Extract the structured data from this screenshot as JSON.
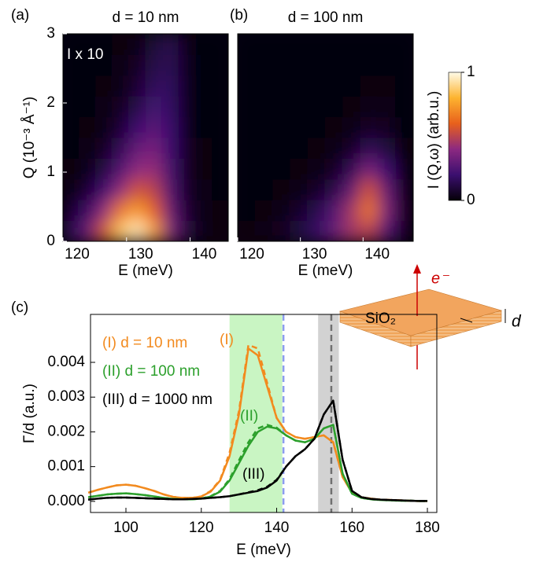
{
  "chart_data": [
    {
      "type": "heatmap",
      "panel": "(a)",
      "title": "d = 10 nm",
      "annotation": "I x 10",
      "x_label": "E (meV)",
      "y_label": "Q (10⁻³ Å⁻¹)",
      "xlim": [
        120,
        146
      ],
      "xticks": [
        120,
        130,
        140
      ],
      "ylim": [
        0,
        3
      ],
      "yticks": [
        0,
        1,
        2,
        3
      ],
      "x": [
        121.3,
        123.9,
        126.5,
        129.1,
        131.7,
        134.3,
        136.9,
        139.5,
        142.1,
        144.7
      ],
      "y": [
        0.15,
        0.45,
        0.75,
        1.05,
        1.35,
        1.65,
        1.95,
        2.25,
        2.55,
        2.85
      ],
      "z": [
        [
          0.15,
          0.3,
          0.55,
          0.85,
          0.95,
          0.75,
          0.35,
          0.1,
          0.03,
          0.01
        ],
        [
          0.08,
          0.18,
          0.4,
          0.65,
          0.75,
          0.6,
          0.3,
          0.08,
          0.02,
          0.01
        ],
        [
          0.03,
          0.08,
          0.2,
          0.4,
          0.55,
          0.5,
          0.25,
          0.06,
          0.02,
          0
        ],
        [
          0.01,
          0.04,
          0.1,
          0.25,
          0.4,
          0.42,
          0.22,
          0.05,
          0.01,
          0
        ],
        [
          0,
          0.02,
          0.05,
          0.15,
          0.3,
          0.35,
          0.2,
          0.05,
          0.01,
          0
        ],
        [
          0,
          0.01,
          0.03,
          0.08,
          0.2,
          0.28,
          0.2,
          0.04,
          0,
          0
        ],
        [
          0,
          0,
          0.02,
          0.05,
          0.12,
          0.22,
          0.18,
          0.04,
          0,
          0
        ],
        [
          0,
          0,
          0.01,
          0.03,
          0.08,
          0.16,
          0.17,
          0.04,
          0,
          0
        ],
        [
          0,
          0,
          0,
          0.02,
          0.05,
          0.12,
          0.15,
          0.04,
          0,
          0
        ],
        [
          0,
          0,
          0,
          0.01,
          0.03,
          0.09,
          0.14,
          0.03,
          0,
          0
        ]
      ]
    },
    {
      "type": "heatmap",
      "panel": "(b)",
      "title": "d = 100 nm",
      "x_label": "E (meV)",
      "xlim": [
        120,
        148
      ],
      "xticks": [
        120,
        130,
        140
      ],
      "ylim": [
        0,
        3
      ],
      "x": [
        121.4,
        124.2,
        127,
        129.8,
        132.6,
        135.4,
        138.2,
        141,
        143.8,
        146.6
      ],
      "y": [
        0.15,
        0.45,
        0.75,
        1.05,
        1.35,
        1.65,
        1.95,
        2.25,
        2.55,
        2.85
      ],
      "z": [
        [
          0.01,
          0.02,
          0.05,
          0.1,
          0.18,
          0.3,
          0.45,
          0.5,
          0.25,
          0.05
        ],
        [
          0,
          0.01,
          0.03,
          0.07,
          0.13,
          0.25,
          0.45,
          0.65,
          0.35,
          0.05
        ],
        [
          0,
          0,
          0.01,
          0.03,
          0.06,
          0.12,
          0.3,
          0.55,
          0.3,
          0.04
        ],
        [
          0,
          0,
          0,
          0.01,
          0.02,
          0.05,
          0.15,
          0.35,
          0.2,
          0.02
        ],
        [
          0,
          0,
          0,
          0,
          0.01,
          0.02,
          0.06,
          0.15,
          0.1,
          0.01
        ],
        [
          0,
          0,
          0,
          0,
          0,
          0.01,
          0.02,
          0.06,
          0.05,
          0
        ],
        [
          0,
          0,
          0,
          0,
          0,
          0,
          0.01,
          0.03,
          0.02,
          0
        ],
        [
          0,
          0,
          0,
          0,
          0,
          0,
          0,
          0.01,
          0.01,
          0
        ],
        [
          0,
          0,
          0,
          0,
          0,
          0,
          0,
          0,
          0,
          0
        ],
        [
          0,
          0,
          0,
          0,
          0,
          0,
          0,
          0,
          0,
          0
        ]
      ]
    },
    {
      "type": "line",
      "panel": "(c)",
      "x_label": "E (meV)",
      "y_label": "Γ/d (a.u.)",
      "xlim": [
        90.6,
        182.5
      ],
      "xticks": [
        100,
        120,
        140,
        160,
        180
      ],
      "ylim": [
        -0.00032,
        0.00538
      ],
      "yticks": [
        {
          "value": 0,
          "label": "0.000"
        },
        {
          "value": 0.001,
          "label": "0.001"
        },
        {
          "value": 0.002,
          "label": "0.002"
        },
        {
          "value": 0.003,
          "label": "0.003"
        },
        {
          "value": 0.004,
          "label": "0.004"
        }
      ],
      "bands": [
        {
          "range": [
            127.5,
            141.5
          ],
          "color": "#c9f5c3"
        },
        {
          "range": [
            151,
            156.5
          ],
          "color": "#d2d2d2"
        }
      ],
      "vlines": [
        {
          "x": 141.8,
          "color": "#8c9cf0"
        },
        {
          "x": 154.5,
          "color": "#707070"
        }
      ],
      "annotations": [
        "(I)",
        "(II)",
        "(III)"
      ],
      "x": [
        90,
        92.5,
        95,
        97.5,
        100,
        102.5,
        105,
        107.5,
        110,
        112.5,
        115,
        117.5,
        120,
        122.5,
        125,
        127.5,
        130,
        132.5,
        135,
        137.5,
        140,
        142.5,
        145,
        147.5,
        150,
        152.5,
        155,
        157.5,
        160,
        162.5,
        165,
        167.5,
        170,
        172.5,
        175,
        177.5,
        180
      ],
      "series": [
        {
          "name": "(I) d = 10 nm",
          "color": "#f28a1e",
          "dash": false,
          "values": [
            0.00025,
            0.00033,
            0.0004,
            0.00046,
            0.00048,
            0.00045,
            0.00038,
            0.0003,
            0.0002,
            0.00013,
            0.0001,
            0.0001,
            0.00014,
            0.00028,
            0.0006,
            0.0013,
            0.0025,
            0.0044,
            0.0042,
            0.0033,
            0.0024,
            0.002,
            0.00185,
            0.0018,
            0.00185,
            0.0019,
            0.0017,
            0.0007,
            0.00025,
            0.00012,
            8e-05,
            5e-05,
            4e-05,
            3e-05,
            2e-05,
            1e-05,
            1e-05
          ]
        },
        {
          "color": "#f28a1e",
          "dash": true,
          "values": [
            0.00025,
            0.00033,
            0.0004,
            0.00046,
            0.00048,
            0.00045,
            0.00038,
            0.0003,
            0.0002,
            0.00013,
            0.0001,
            0.0001,
            0.00014,
            0.0003,
            0.00062,
            0.0014,
            0.0026,
            0.0045,
            0.0044,
            0.0034,
            0.0024,
            0.002,
            0.00185,
            0.0018,
            0.00185,
            0.0019,
            0.0017,
            0.0007,
            0.00025,
            0.00012,
            8e-05,
            5e-05,
            4e-05,
            3e-05,
            2e-05,
            1e-05,
            1e-05
          ]
        },
        {
          "name": "(II) d = 100 nm",
          "color": "#2ca02c",
          "dash": false,
          "values": [
            0.00012,
            0.00016,
            0.0002,
            0.00022,
            0.00023,
            0.00021,
            0.00018,
            0.00014,
            0.0001,
            7e-05,
            6e-05,
            6e-05,
            8e-05,
            0.00014,
            0.00028,
            0.0006,
            0.0011,
            0.0016,
            0.002,
            0.00215,
            0.0021,
            0.0019,
            0.00175,
            0.0017,
            0.0018,
            0.0021,
            0.0022,
            0.0008,
            0.00022,
            0.0001,
            6e-05,
            4e-05,
            3e-05,
            2e-05,
            2e-05,
            1e-05,
            1e-05
          ]
        },
        {
          "color": "#2ca02c",
          "dash": true,
          "values": [
            0.00012,
            0.00016,
            0.0002,
            0.00022,
            0.00023,
            0.00021,
            0.00018,
            0.00014,
            0.0001,
            7e-05,
            6e-05,
            6e-05,
            8e-05,
            0.00015,
            0.0003,
            0.00064,
            0.00118,
            0.0017,
            0.0021,
            0.0022,
            0.00212,
            0.0019,
            0.00175,
            0.0017,
            0.0018,
            0.0021,
            0.0022,
            0.0008,
            0.00022,
            0.0001,
            6e-05,
            4e-05,
            3e-05,
            2e-05,
            2e-05,
            1e-05,
            1e-05
          ]
        },
        {
          "name": "(III) d = 1000 nm",
          "color": "#000000",
          "dash": false,
          "values": [
            5e-05,
            8e-05,
            0.0001,
            0.00011,
            0.00011,
            0.0001,
            9e-05,
            8e-05,
            7e-05,
            6e-05,
            6e-05,
            7e-05,
            8e-05,
            0.0001,
            0.00012,
            0.00015,
            0.0002,
            0.00025,
            0.0003,
            0.0004,
            0.0006,
            0.001,
            0.0013,
            0.0015,
            0.0018,
            0.0025,
            0.0029,
            0.0012,
            0.0003,
            0.00012,
            7e-05,
            5e-05,
            4e-05,
            3e-05,
            2e-05,
            1e-05,
            1e-05
          ]
        },
        {
          "color": "#000000",
          "dash": true,
          "values": [
            5e-05,
            8e-05,
            0.0001,
            0.00011,
            0.00011,
            0.0001,
            9e-05,
            8e-05,
            7e-05,
            6e-05,
            6e-05,
            7e-05,
            8e-05,
            0.0001,
            0.00012,
            0.00015,
            0.0002,
            0.00026,
            0.00032,
            0.00042,
            0.00062,
            0.001,
            0.0013,
            0.0015,
            0.0018,
            0.0025,
            0.0029,
            0.0012,
            0.0003,
            0.00012,
            7e-05,
            5e-05,
            4e-05,
            3e-05,
            2e-05,
            1e-05,
            1e-05
          ]
        }
      ]
    }
  ],
  "colorbar": {
    "label": "I (Q,ω)  (arb.u.)",
    "range": [
      0,
      1
    ],
    "ticks": [
      0,
      1
    ]
  },
  "inset": {
    "material": "SiO₂",
    "particle": "e⁻",
    "thickness": "d"
  }
}
